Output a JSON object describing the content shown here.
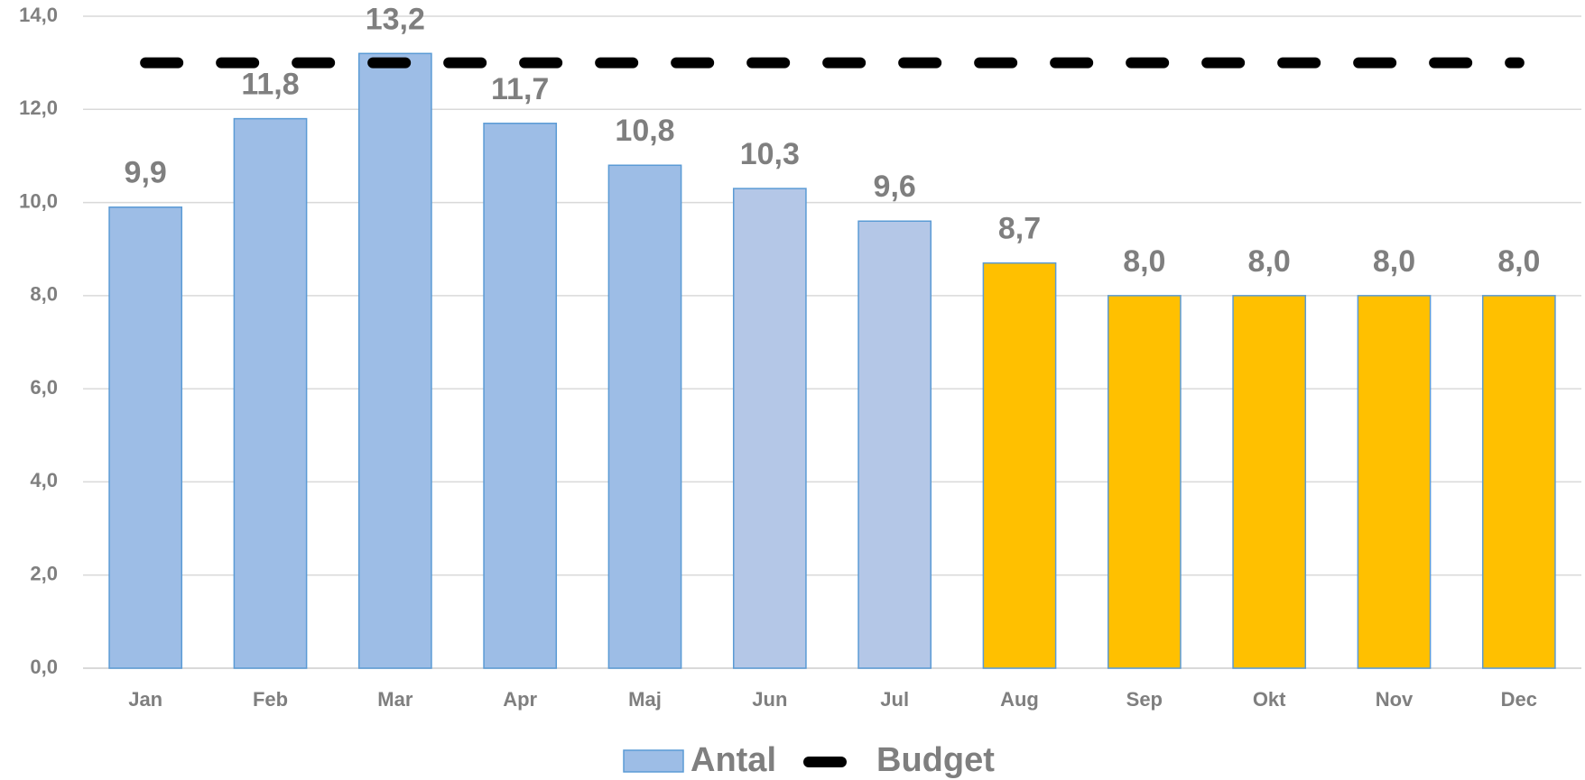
{
  "chart_data": {
    "type": "bar",
    "categories": [
      "Jan",
      "Feb",
      "Mar",
      "Apr",
      "Maj",
      "Jun",
      "Jul",
      "Aug",
      "Sep",
      "Okt",
      "Nov",
      "Dec"
    ],
    "series": [
      {
        "name": "Antal",
        "color": "#9dbde6",
        "colors": [
          "#9dbde6",
          "#9dbde6",
          "#9dbde6",
          "#9dbde6",
          "#9dbde6",
          "#b4c7e7",
          "#b4c7e7",
          "#ffc000",
          "#ffc000",
          "#ffc000",
          "#ffc000",
          "#ffc000"
        ],
        "values": [
          9.9,
          11.8,
          13.2,
          11.7,
          10.8,
          10.3,
          9.6,
          8.7,
          8,
          8,
          8,
          8
        ],
        "value_labels": [
          "9,9",
          "11,8",
          "13,2",
          "11,7",
          "10,8",
          "10,3",
          "9,6",
          "8,7",
          "8,0",
          "8,0",
          "8,0",
          "8,0"
        ]
      },
      {
        "name": "Budget",
        "type": "line",
        "color": "#000000",
        "values": [
          13,
          13,
          13,
          13,
          13,
          13,
          13,
          13,
          13,
          13,
          13,
          13
        ]
      }
    ],
    "ylim": [
      0,
      14
    ],
    "yticks": [
      {
        "value": 0,
        "label": "0,0"
      },
      {
        "value": 2,
        "label": "2,0"
      },
      {
        "value": 4,
        "label": "4,0"
      },
      {
        "value": 6,
        "label": "6,0"
      },
      {
        "value": 8,
        "label": "8,0"
      },
      {
        "value": 10,
        "label": "10,0"
      },
      {
        "value": 12,
        "label": "12,0"
      },
      {
        "value": 14,
        "label": "14,0"
      }
    ],
    "grid": true,
    "legend": "bottom"
  }
}
